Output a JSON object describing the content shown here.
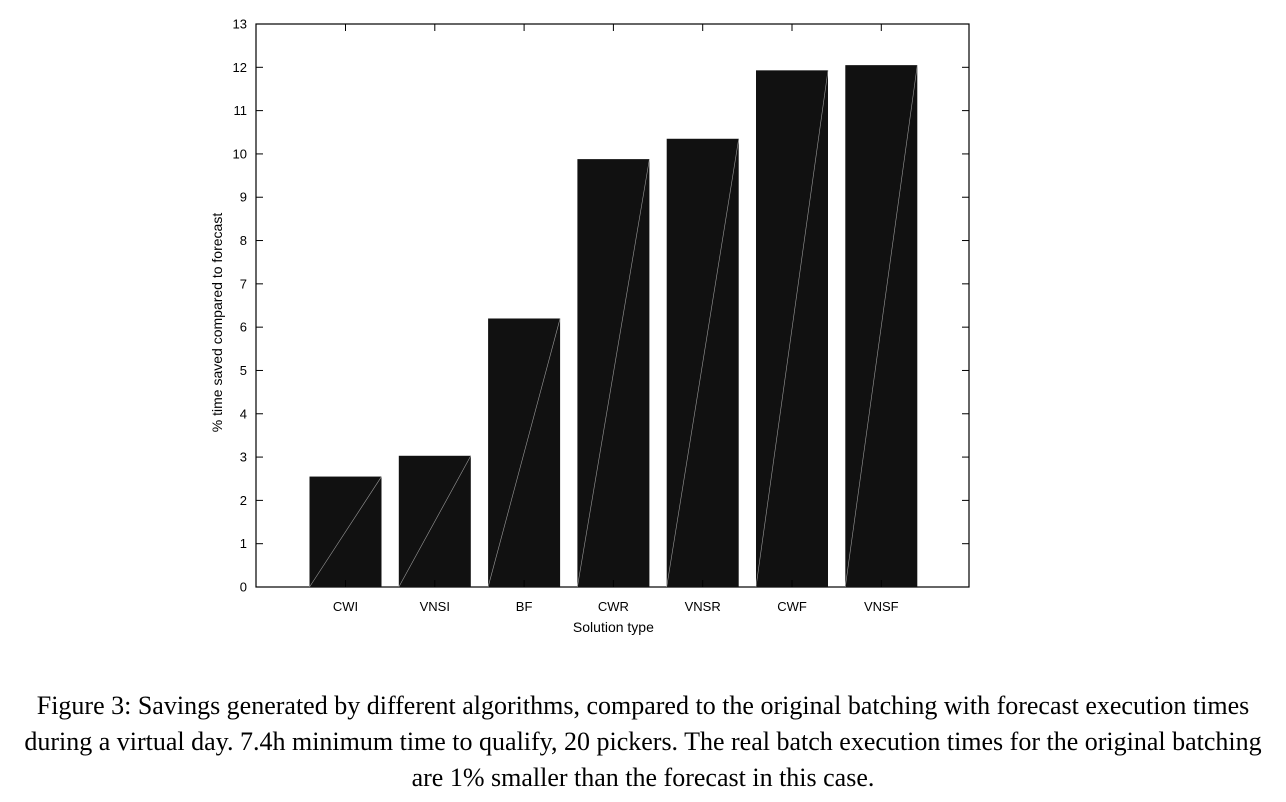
{
  "chart_data": {
    "type": "bar",
    "categories": [
      "CWI",
      "VNSI",
      "BF",
      "CWR",
      "VNSR",
      "CWF",
      "VNSF"
    ],
    "values": [
      2.55,
      3.03,
      6.2,
      9.88,
      10.35,
      11.93,
      12.05
    ],
    "title": "",
    "xlabel": "Solution type",
    "ylabel": "% time saved compared to forecast",
    "ylim": [
      0,
      13
    ],
    "yticks": [
      0,
      1,
      2,
      3,
      4,
      5,
      6,
      7,
      8,
      9,
      10,
      11,
      12,
      13
    ],
    "grid": false,
    "bar_color": "#111111"
  },
  "caption": "Figure 3: Savings generated by different algorithms, compared to the original batching with forecast execution times during a virtual day. 7.4h minimum time to qualify, 20 pickers. The real batch execution times for the original batching are 1% smaller than the forecast in this case."
}
